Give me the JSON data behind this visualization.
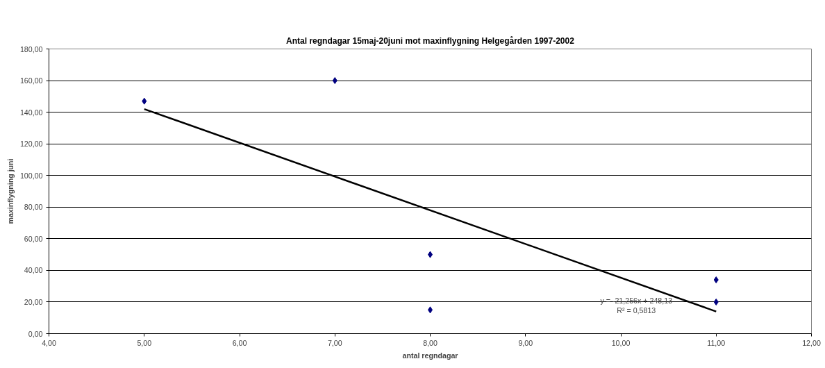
{
  "chart_data": {
    "type": "scatter",
    "title": "Antal regndagar 15maj-20juni mot maxinflygning Helgegården 1997-2002",
    "xlabel": "antal regndagar",
    "ylabel": "maxinflygning juni",
    "x": [
      5,
      7,
      8,
      8,
      11,
      11
    ],
    "series": [
      {
        "color": "#000080",
        "values": [
          147,
          160,
          50,
          15,
          34,
          20
        ],
        "marker": "diamond"
      },
      {
        "type": "line",
        "color": "#000000",
        "x": [
          5,
          11
        ],
        "values": [
          142,
          14
        ],
        "marker": "none"
      }
    ],
    "xlim": [
      4,
      12
    ],
    "xticks": [
      {
        "value": 4,
        "label": "4,00"
      },
      {
        "value": 5,
        "label": "5,00"
      },
      {
        "value": 6,
        "label": "6,00"
      },
      {
        "value": 7,
        "label": "7,00"
      },
      {
        "value": 8,
        "label": "8,00"
      },
      {
        "value": 9,
        "label": "9,00"
      },
      {
        "value": 10,
        "label": "10,00"
      },
      {
        "value": 11,
        "label": "11,00"
      },
      {
        "value": 12,
        "label": "12,00"
      }
    ],
    "ylim": [
      0,
      180
    ],
    "yticks": [
      {
        "value": 0,
        "label": "0,00"
      },
      {
        "value": 20,
        "label": "20,00"
      },
      {
        "value": 40,
        "label": "40,00"
      },
      {
        "value": 60,
        "label": "60,00"
      },
      {
        "value": 80,
        "label": "80,00"
      },
      {
        "value": 100,
        "label": "100,00"
      },
      {
        "value": 120,
        "label": "120,00"
      },
      {
        "value": 140,
        "label": "140,00"
      },
      {
        "value": 160,
        "label": "160,00"
      },
      {
        "value": 180,
        "label": "180,00"
      }
    ],
    "grid": "y",
    "annotations": [
      "y = -21,256x + 248,13",
      "R² = 0,5813"
    ]
  }
}
